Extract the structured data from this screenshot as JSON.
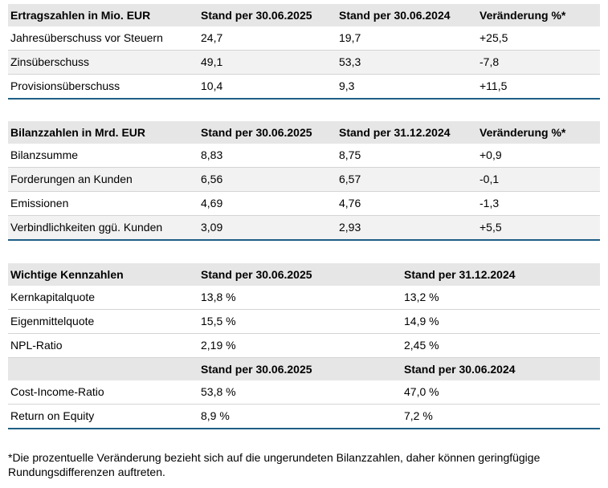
{
  "ertrag": {
    "headers": [
      "Ertragszahlen in Mio. EUR",
      "Stand per 30.06.2025",
      "Stand per 30.06.2024",
      "Veränderung %*"
    ],
    "rows": [
      [
        "Jahresüberschuss vor Steuern",
        "24,7",
        "19,7",
        "+25,5"
      ],
      [
        "Zinsüberschuss",
        "49,1",
        "53,3",
        "-7,8"
      ],
      [
        "Provisionsüberschuss",
        "10,4",
        "9,3",
        "+11,5"
      ]
    ]
  },
  "bilanz": {
    "headers": [
      "Bilanzzahlen in Mrd. EUR",
      "Stand per 30.06.2025",
      "Stand per 31.12.2024",
      "Veränderung %*"
    ],
    "rows": [
      [
        "Bilanzsumme",
        "8,83",
        "8,75",
        "+0,9"
      ],
      [
        "Forderungen an Kunden",
        "6,56",
        "6,57",
        "-0,1"
      ],
      [
        "Emissionen",
        "4,69",
        "4,76",
        "-1,3"
      ],
      [
        "Verbindlichkeiten ggü. Kunden",
        "3,09",
        "2,93",
        "+5,5"
      ]
    ]
  },
  "kennzahlen": {
    "headers": [
      "Wichtige Kennzahlen",
      "Stand per 30.06.2025",
      "Stand per 31.12.2024"
    ],
    "rows": [
      [
        "Kernkapitalquote",
        "13,8 %",
        "13,2 %"
      ],
      [
        "Eigenmittelquote",
        "15,5 %",
        "14,9 %"
      ],
      [
        "NPL-Ratio",
        "2,19 %",
        "2,45 %"
      ]
    ],
    "subheaders": [
      "",
      "Stand per 30.06.2025",
      "Stand per 30.06.2024"
    ],
    "subrows": [
      [
        "Cost-Income-Ratio",
        "53,8 %",
        "47,0 %"
      ],
      [
        "Return on Equity",
        "8,9 %",
        "7,2 %"
      ]
    ]
  },
  "footnote": "*Die prozentuelle Veränderung bezieht sich auf die ungerundeten Bilanzzahlen, daher können geringfügige Rundungsdifferenzen auftreten."
}
